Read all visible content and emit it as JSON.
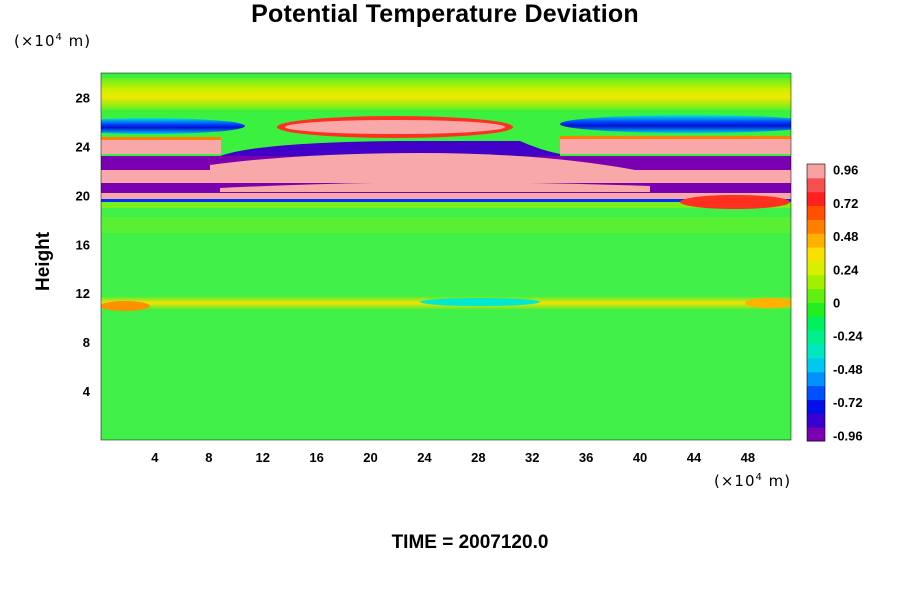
{
  "chart_data": {
    "type": "heatmap",
    "title": "Potential Temperature Deviation",
    "ylabel": "Height",
    "y_unit": "(×10",
    "y_unit_exp": "4",
    "y_unit_tail": " m)",
    "x_unit": "(×10",
    "x_unit_exp": "4",
    "x_unit_tail": " m)",
    "footer": "TIME = 2007120.0",
    "xlim": [
      0,
      51.2
    ],
    "ylim": [
      0,
      30
    ],
    "x_ticks": [
      4,
      8,
      12,
      16,
      20,
      24,
      28,
      32,
      36,
      40,
      44,
      48
    ],
    "y_ticks": [
      4,
      8,
      12,
      16,
      20,
      24,
      28
    ],
    "colorbar": {
      "range": [
        -1,
        1
      ],
      "ticks": [
        0.96,
        0.72,
        0.48,
        0.24,
        0,
        -0.24,
        -0.48,
        -0.72,
        -0.96
      ],
      "tick_labels": [
        "0.96",
        "0.72",
        "0.48",
        "0.24",
        "0",
        "-0.24",
        "-0.48",
        "-0.72",
        "-0.96"
      ],
      "colors": [
        "#7a00b0",
        "#3a00d0",
        "#0010e8",
        "#0050ff",
        "#0090ff",
        "#00c8f0",
        "#00e8c0",
        "#00f090",
        "#00f060",
        "#20f020",
        "#60f010",
        "#a0f000",
        "#d8f000",
        "#f8e000",
        "#ffb000",
        "#ff8000",
        "#ff5000",
        "#ff2020",
        "#f85050",
        "#f8a0a0"
      ]
    },
    "bands": [
      {
        "name": "background",
        "value": 0.05
      },
      {
        "name": "band-27",
        "y": 27.2,
        "value": 0.28
      },
      {
        "name": "band-25-edges",
        "y": 25.2,
        "value": -0.8
      },
      {
        "name": "band-25-center",
        "y": 25.8,
        "value": 0.96
      },
      {
        "name": "band-24",
        "y": 24.0,
        "value": 0.96
      },
      {
        "name": "band-22",
        "y": 22.0,
        "value": -0.96
      },
      {
        "name": "band-21",
        "y": 21.0,
        "value": 0.96
      },
      {
        "name": "band-20",
        "y": 20.2,
        "value": -0.96
      },
      {
        "name": "band-19",
        "y": 19.5,
        "value": 0.96
      },
      {
        "name": "band-11",
        "y": 11.2,
        "value": 0.4
      }
    ]
  }
}
